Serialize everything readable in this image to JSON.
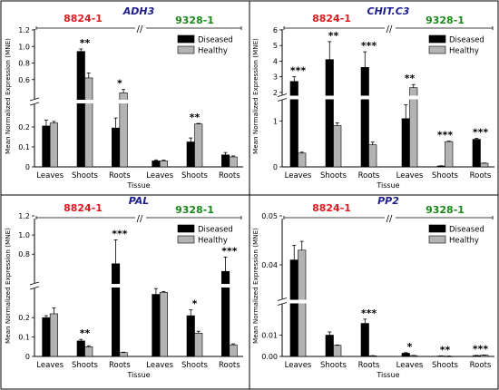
{
  "chart_data": [
    {
      "type": "bar",
      "title": "ADH3",
      "group_left": "8824-1",
      "group_right": "9328-1",
      "ylabel": "Mean Normalized Expression (MNE)",
      "xlabel": "Tissue",
      "categories": [
        "Leaves",
        "Shoots",
        "Roots",
        "Leaves",
        "Shoots",
        "Roots"
      ],
      "series": [
        {
          "name": "Diseased",
          "color": "#000000",
          "values": [
            0.205,
            0.94,
            0.195,
            0.03,
            0.125,
            0.06
          ],
          "errors": [
            0.03,
            0.03,
            0.05,
            0.005,
            0.02,
            0.012
          ]
        },
        {
          "name": "Healthy",
          "color": "#b3b3b3",
          "values": [
            0.22,
            0.62,
            0.44,
            0.03,
            0.215,
            0.05
          ],
          "errors": [
            0.008,
            0.06,
            0.04,
            0.004,
            0.003,
            0.005
          ]
        }
      ],
      "significance": [
        "",
        "**",
        "*",
        "",
        "**",
        ""
      ],
      "y_ticks": [
        "0",
        "0.1",
        "0.2",
        "0.6",
        "0.8",
        "1.0",
        "1.2"
      ],
      "y_breaks": [
        0.3,
        0.4
      ],
      "ylim": [
        0,
        1.2
      ]
    },
    {
      "type": "bar",
      "title": "CHIT.C3",
      "group_left": "8824-1",
      "group_right": "9328-1",
      "ylabel": "Mean Normalized Expression (MNE)",
      "xlabel": "Tissue",
      "categories": [
        "Leaves",
        "Shoots",
        "Roots",
        "Leaves",
        "Shoots",
        "Roots"
      ],
      "series": [
        {
          "name": "Diseased",
          "color": "#000000",
          "values": [
            2.7,
            4.1,
            3.6,
            1.05,
            0.02,
            0.6
          ],
          "errors": [
            0.3,
            1.15,
            1.0,
            0.3,
            0.005,
            0.02
          ]
        },
        {
          "name": "Healthy",
          "color": "#b3b3b3",
          "values": [
            0.3,
            0.9,
            0.48,
            2.3,
            0.55,
            0.08
          ],
          "errors": [
            0.02,
            0.06,
            0.06,
            0.2,
            0.01,
            0.005
          ]
        }
      ],
      "significance": [
        "***",
        "**",
        "***",
        "**",
        "***",
        "***"
      ],
      "y_ticks": [
        "0",
        "1",
        "2",
        "3",
        "4",
        "5",
        "6"
      ],
      "y_breaks": [
        1.5,
        1.7
      ],
      "ylim": [
        0,
        6
      ]
    },
    {
      "type": "bar",
      "title": "PAL",
      "group_left": "8824-1",
      "group_right": "9328-1",
      "ylabel": "Mean Normalized Expression (MNE)",
      "xlabel": "Tissue",
      "categories": [
        "Leaves",
        "Shoots",
        "Roots",
        "Leaves",
        "Shoots",
        "Roots"
      ],
      "series": [
        {
          "name": "Diseased",
          "color": "#000000",
          "values": [
            0.2,
            0.08,
            0.7,
            0.32,
            0.21,
            0.62
          ],
          "errors": [
            0.01,
            0.008,
            0.25,
            0.03,
            0.03,
            0.15
          ]
        },
        {
          "name": "Healthy",
          "color": "#b3b3b3",
          "values": [
            0.22,
            0.05,
            0.02,
            0.33,
            0.12,
            0.06
          ],
          "errors": [
            0.03,
            0.005,
            0.002,
            0.005,
            0.01,
            0.005
          ]
        }
      ],
      "significance": [
        "",
        "**",
        "***",
        "",
        "*",
        "***"
      ],
      "y_ticks": [
        "0",
        "0.1",
        "0.2",
        "0.8",
        "1.0",
        "1.2"
      ],
      "y_breaks": [
        0.36,
        0.48
      ],
      "ylim": [
        0,
        1.2
      ]
    },
    {
      "type": "bar",
      "title": "PP2",
      "group_left": "8824-1",
      "group_right": "9328-1",
      "ylabel": "Mean Normalized Expression (MNE)",
      "xlabel": "Tissue",
      "categories": [
        "Leaves",
        "Shoots",
        "Roots",
        "Leaves",
        "Shoots",
        "Roots"
      ],
      "series": [
        {
          "name": "Diseased",
          "color": "#000000",
          "values": [
            0.041,
            0.01,
            0.0155,
            0.0015,
            0.0002,
            0.0004
          ],
          "errors": [
            0.003,
            0.0015,
            0.002,
            0.0003,
            0.0001,
            0.0001
          ]
        },
        {
          "name": "Healthy",
          "color": "#b3b3b3",
          "values": [
            0.043,
            0.0052,
            0.0003,
            0.0004,
            0.0001,
            0.0006
          ],
          "errors": [
            0.0018,
            0.0002,
            0.0001,
            0.0001,
            0.0001,
            0.0001
          ]
        }
      ],
      "significance": [
        "",
        "",
        "***",
        "*",
        "**",
        "***"
      ],
      "y_ticks": [
        "0.00",
        "0.01",
        "0.04",
        "0.05"
      ],
      "y_breaks": [
        0.02,
        0.035
      ],
      "ylim": [
        0,
        0.05
      ]
    }
  ],
  "colors": {
    "left_group": "#e0191f",
    "right_group": "#1a8a1a",
    "title": "#1d1d8c"
  }
}
